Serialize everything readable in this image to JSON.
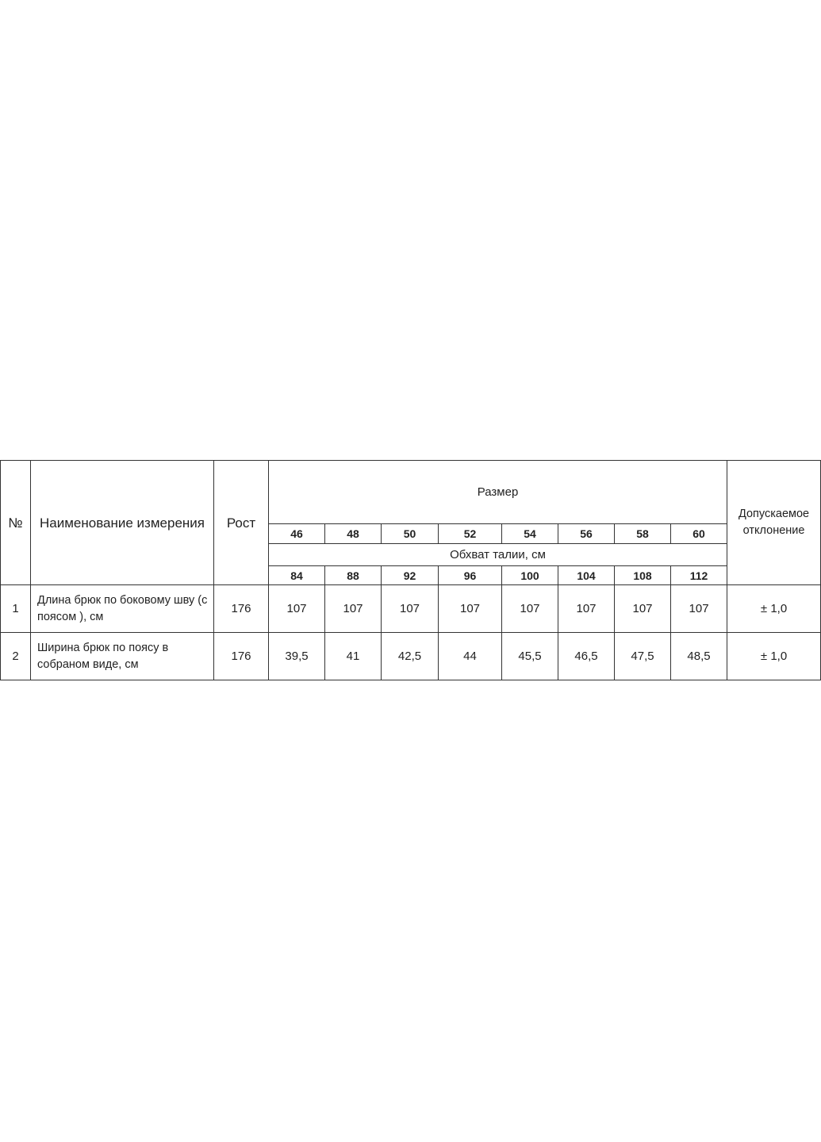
{
  "table": {
    "headers": {
      "no": "№",
      "name": "Наименование измерения",
      "height": "Рост",
      "size": "Размер",
      "waist": "Обхват талии, см",
      "tolerance": "Допускаемое отклонение"
    },
    "sizes": [
      "46",
      "48",
      "50",
      "52",
      "54",
      "56",
      "58",
      "60"
    ],
    "waist_values": [
      "84",
      "88",
      "92",
      "96",
      "100",
      "104",
      "108",
      "112"
    ],
    "rows": [
      {
        "no": "1",
        "name": "Длина брюк по боковому шву (с поясом ), см",
        "height": "176",
        "values": [
          "107",
          "107",
          "107",
          "107",
          "107",
          "107",
          "107",
          "107"
        ],
        "tolerance": "± 1,0"
      },
      {
        "no": "2",
        "name": "Ширина брюк по поясу в собраном виде, см",
        "height": "176",
        "values": [
          "39,5",
          "41",
          "42,5",
          "44",
          "45,5",
          "46,5",
          "47,5",
          "48,5"
        ],
        "tolerance": "± 1,0"
      }
    ]
  }
}
